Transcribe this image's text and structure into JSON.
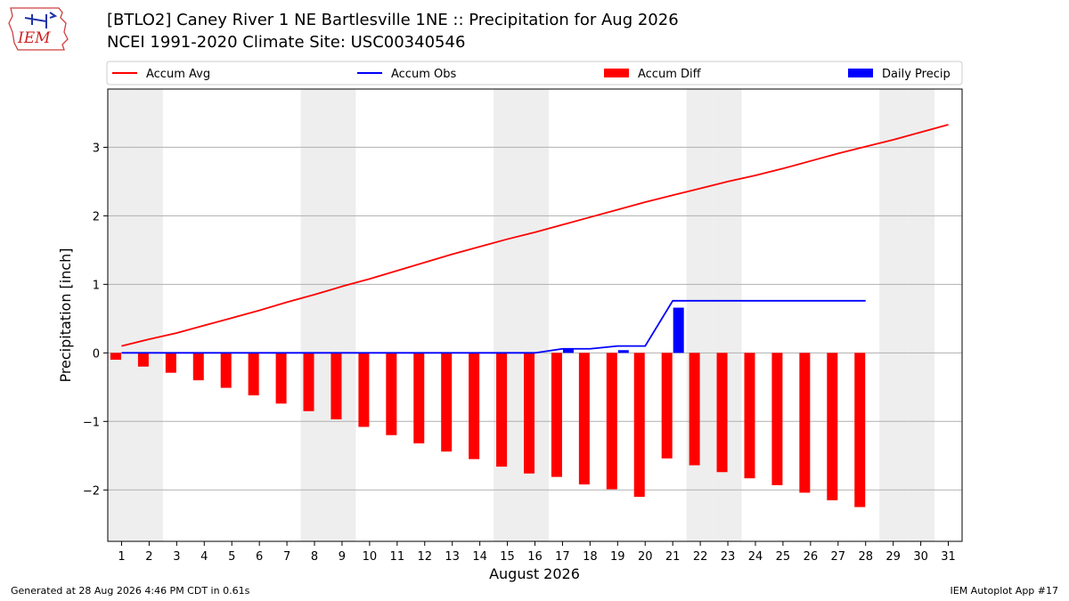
{
  "header": {
    "title_line1": "[BTLO2] Caney River 1 NE Bartlesville 1NE :: Precipitation for Aug 2026",
    "title_line2": "NCEI 1991-2020 Climate Site: USC00340546",
    "logo_text": "IEM"
  },
  "footer": {
    "generated": "Generated at 28 Aug 2026 4:46 PM CDT in 0.61s",
    "app": "IEM Autoplot App #17"
  },
  "chart_data": {
    "type": "bar",
    "xlabel": "August 2026",
    "ylabel": "Precipitation [inch]",
    "xlim": [
      0.5,
      31.5
    ],
    "ylim": [
      -2.75,
      3.85
    ],
    "yticks": [
      -2,
      -1,
      0,
      1,
      2,
      3
    ],
    "ytick_labels": [
      "−2",
      "−1",
      "0",
      "1",
      "2",
      "3"
    ],
    "x": [
      1,
      2,
      3,
      4,
      5,
      6,
      7,
      8,
      9,
      10,
      11,
      12,
      13,
      14,
      15,
      16,
      17,
      18,
      19,
      20,
      21,
      22,
      23,
      24,
      25,
      26,
      27,
      28,
      29,
      30,
      31
    ],
    "weekend_days": [
      1,
      2,
      8,
      9,
      15,
      16,
      22,
      23,
      29,
      30
    ],
    "grid": "horizontal",
    "legend_position": "top",
    "colors": {
      "accum_avg": "#ff0000",
      "accum_obs": "#0000ff",
      "accum_diff": "#ff0000",
      "daily_precip": "#0000ff",
      "weekend": "#eeeeee"
    },
    "series": [
      {
        "name": "Accum Avg",
        "kind": "line",
        "x": [
          1,
          2,
          3,
          4,
          5,
          6,
          7,
          8,
          9,
          10,
          11,
          12,
          13,
          14,
          15,
          16,
          17,
          18,
          19,
          20,
          21,
          22,
          23,
          24,
          25,
          26,
          27,
          28,
          29,
          30,
          31
        ],
        "values": [
          0.1,
          0.2,
          0.29,
          0.4,
          0.51,
          0.62,
          0.74,
          0.85,
          0.97,
          1.08,
          1.2,
          1.32,
          1.44,
          1.55,
          1.66,
          1.76,
          1.87,
          1.98,
          2.09,
          2.2,
          2.3,
          2.4,
          2.5,
          2.59,
          2.69,
          2.8,
          2.91,
          3.01,
          3.11,
          3.22,
          3.33
        ]
      },
      {
        "name": "Accum Obs",
        "kind": "line",
        "x": [
          1,
          2,
          3,
          4,
          5,
          6,
          7,
          8,
          9,
          10,
          11,
          12,
          13,
          14,
          15,
          16,
          17,
          18,
          19,
          20,
          21,
          22,
          23,
          24,
          25,
          26,
          27,
          28
        ],
        "values": [
          0,
          0,
          0,
          0,
          0,
          0,
          0,
          0,
          0,
          0,
          0,
          0,
          0,
          0,
          0,
          0,
          0.06,
          0.06,
          0.1,
          0.1,
          0.76,
          0.76,
          0.76,
          0.76,
          0.76,
          0.76,
          0.76,
          0.76
        ]
      },
      {
        "name": "Accum Diff",
        "kind": "bar",
        "x": [
          1,
          2,
          3,
          4,
          5,
          6,
          7,
          8,
          9,
          10,
          11,
          12,
          13,
          14,
          15,
          16,
          17,
          18,
          19,
          20,
          21,
          22,
          23,
          24,
          25,
          26,
          27,
          28
        ],
        "values": [
          -0.1,
          -0.2,
          -0.29,
          -0.4,
          -0.51,
          -0.62,
          -0.74,
          -0.85,
          -0.97,
          -1.08,
          -1.2,
          -1.32,
          -1.44,
          -1.55,
          -1.66,
          -1.76,
          -1.81,
          -1.92,
          -1.99,
          -2.1,
          -1.54,
          -1.64,
          -1.74,
          -1.83,
          -1.93,
          -2.04,
          -2.15,
          -2.25
        ]
      },
      {
        "name": "Daily Precip",
        "kind": "bar",
        "x": [
          17,
          19,
          21
        ],
        "values": [
          0.06,
          0.04,
          0.66
        ]
      }
    ]
  }
}
